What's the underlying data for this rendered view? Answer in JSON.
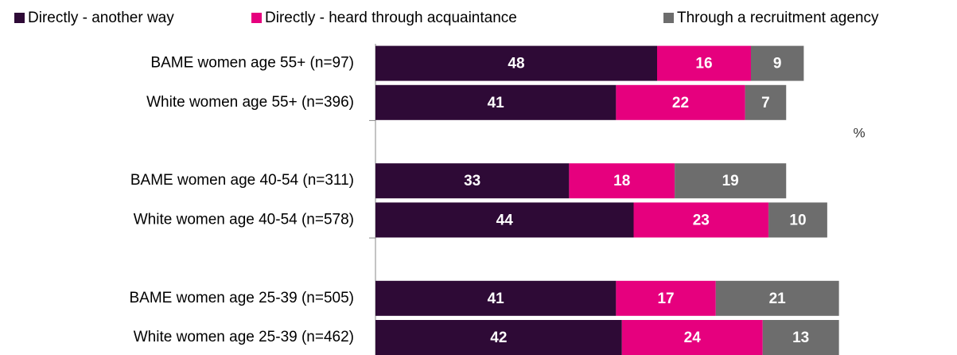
{
  "chart_data": {
    "type": "stacked-bar-horizontal",
    "categories": [
      "BAME women age 55+ (n=97)",
      "White women age 55+ (n=396)",
      null,
      "BAME women age 40-54 (n=311)",
      "White women age 40-54 (n=578)",
      null,
      "BAME women age 25-39 (n=505)",
      "White women age 25-39 (n=462)"
    ],
    "series": [
      {
        "name": "Directly - another way",
        "color": "#2e0a36",
        "values": [
          48,
          41,
          null,
          33,
          44,
          null,
          41,
          42
        ]
      },
      {
        "name": "Directly - heard through acquaintance",
        "color": "#e6007e",
        "values": [
          16,
          22,
          null,
          18,
          23,
          null,
          17,
          24
        ]
      },
      {
        "name": "Through a recruitment agency",
        "color": "#6d6d6d",
        "values": [
          9,
          7,
          null,
          19,
          10,
          null,
          21,
          13
        ]
      }
    ],
    "annotation": "%",
    "legend": "top"
  }
}
